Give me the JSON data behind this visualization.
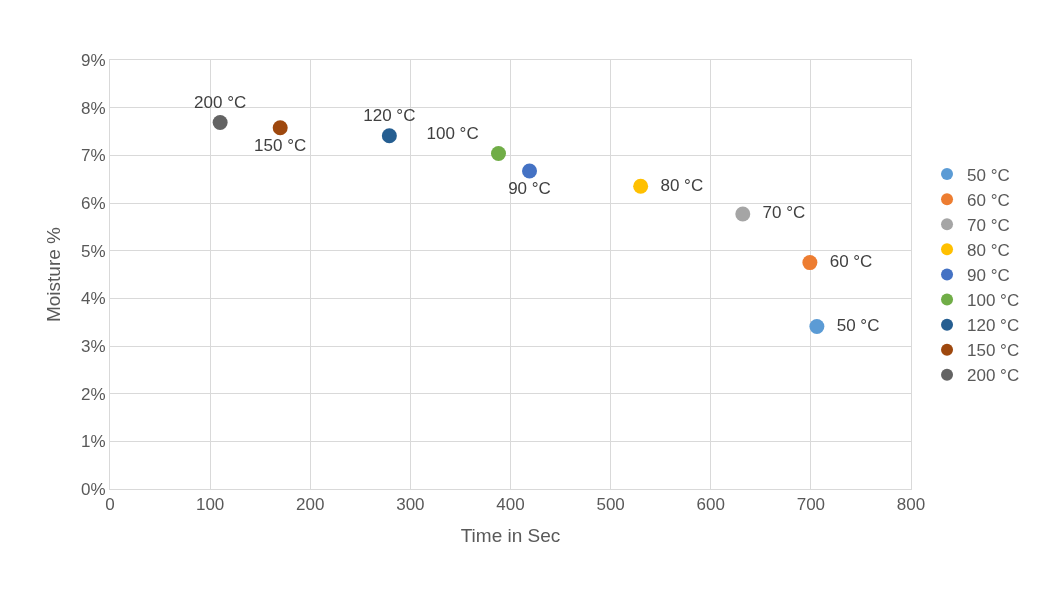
{
  "chart_data": {
    "type": "scatter",
    "xlabel": "Time in Sec",
    "ylabel": "Moisture %",
    "xlim": [
      0,
      800
    ],
    "xticks": [
      0,
      100,
      200,
      300,
      400,
      500,
      600,
      700,
      800
    ],
    "ylim": [
      0,
      9
    ],
    "yticks": [
      {
        "value": 0,
        "label": "0%"
      },
      {
        "value": 1,
        "label": "1%"
      },
      {
        "value": 2,
        "label": "2%"
      },
      {
        "value": 3,
        "label": "3%"
      },
      {
        "value": 4,
        "label": "4%"
      },
      {
        "value": 5,
        "label": "5%"
      },
      {
        "value": 6,
        "label": "6%"
      },
      {
        "value": 7,
        "label": "7%"
      },
      {
        "value": 8,
        "label": "8%"
      },
      {
        "value": 9,
        "label": "9%"
      }
    ],
    "grid": true,
    "legend": "right",
    "marker": "circle",
    "series": [
      {
        "name": "50 °C",
        "color": "#5b9bd5",
        "x": [
          706
        ],
        "values": [
          3.41
        ]
      },
      {
        "name": "60 °C",
        "color": "#ed7d31",
        "x": [
          699
        ],
        "values": [
          4.75
        ]
      },
      {
        "name": "70 °C",
        "color": "#a5a5a5",
        "x": [
          632
        ],
        "values": [
          5.77
        ]
      },
      {
        "name": "80 °C",
        "color": "#ffc000",
        "x": [
          530
        ],
        "values": [
          6.35
        ]
      },
      {
        "name": "90 °C",
        "color": "#4472c4",
        "x": [
          419
        ],
        "values": [
          6.67
        ]
      },
      {
        "name": "100 °C",
        "color": "#70ad47",
        "x": [
          388
        ],
        "values": [
          7.04
        ]
      },
      {
        "name": "120 °C",
        "color": "#255e91",
        "x": [
          279
        ],
        "values": [
          7.41
        ]
      },
      {
        "name": "150 °C",
        "color": "#9e480e",
        "x": [
          170
        ],
        "values": [
          7.58
        ]
      },
      {
        "name": "200 °C",
        "color": "#636363",
        "x": [
          110
        ],
        "values": [
          7.69
        ]
      }
    ]
  }
}
